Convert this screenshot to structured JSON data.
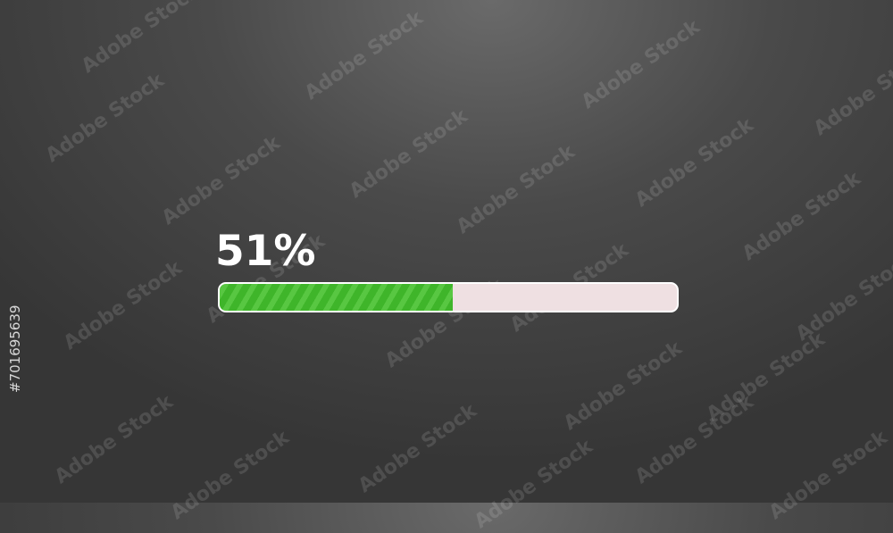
{
  "progress": {
    "label": "51%",
    "value_percent": 51,
    "fill_color": "#3fb52a",
    "track_color": "#efe0e2"
  },
  "watermark": {
    "text": "Adobe Stock",
    "side_id": "#701695639"
  }
}
